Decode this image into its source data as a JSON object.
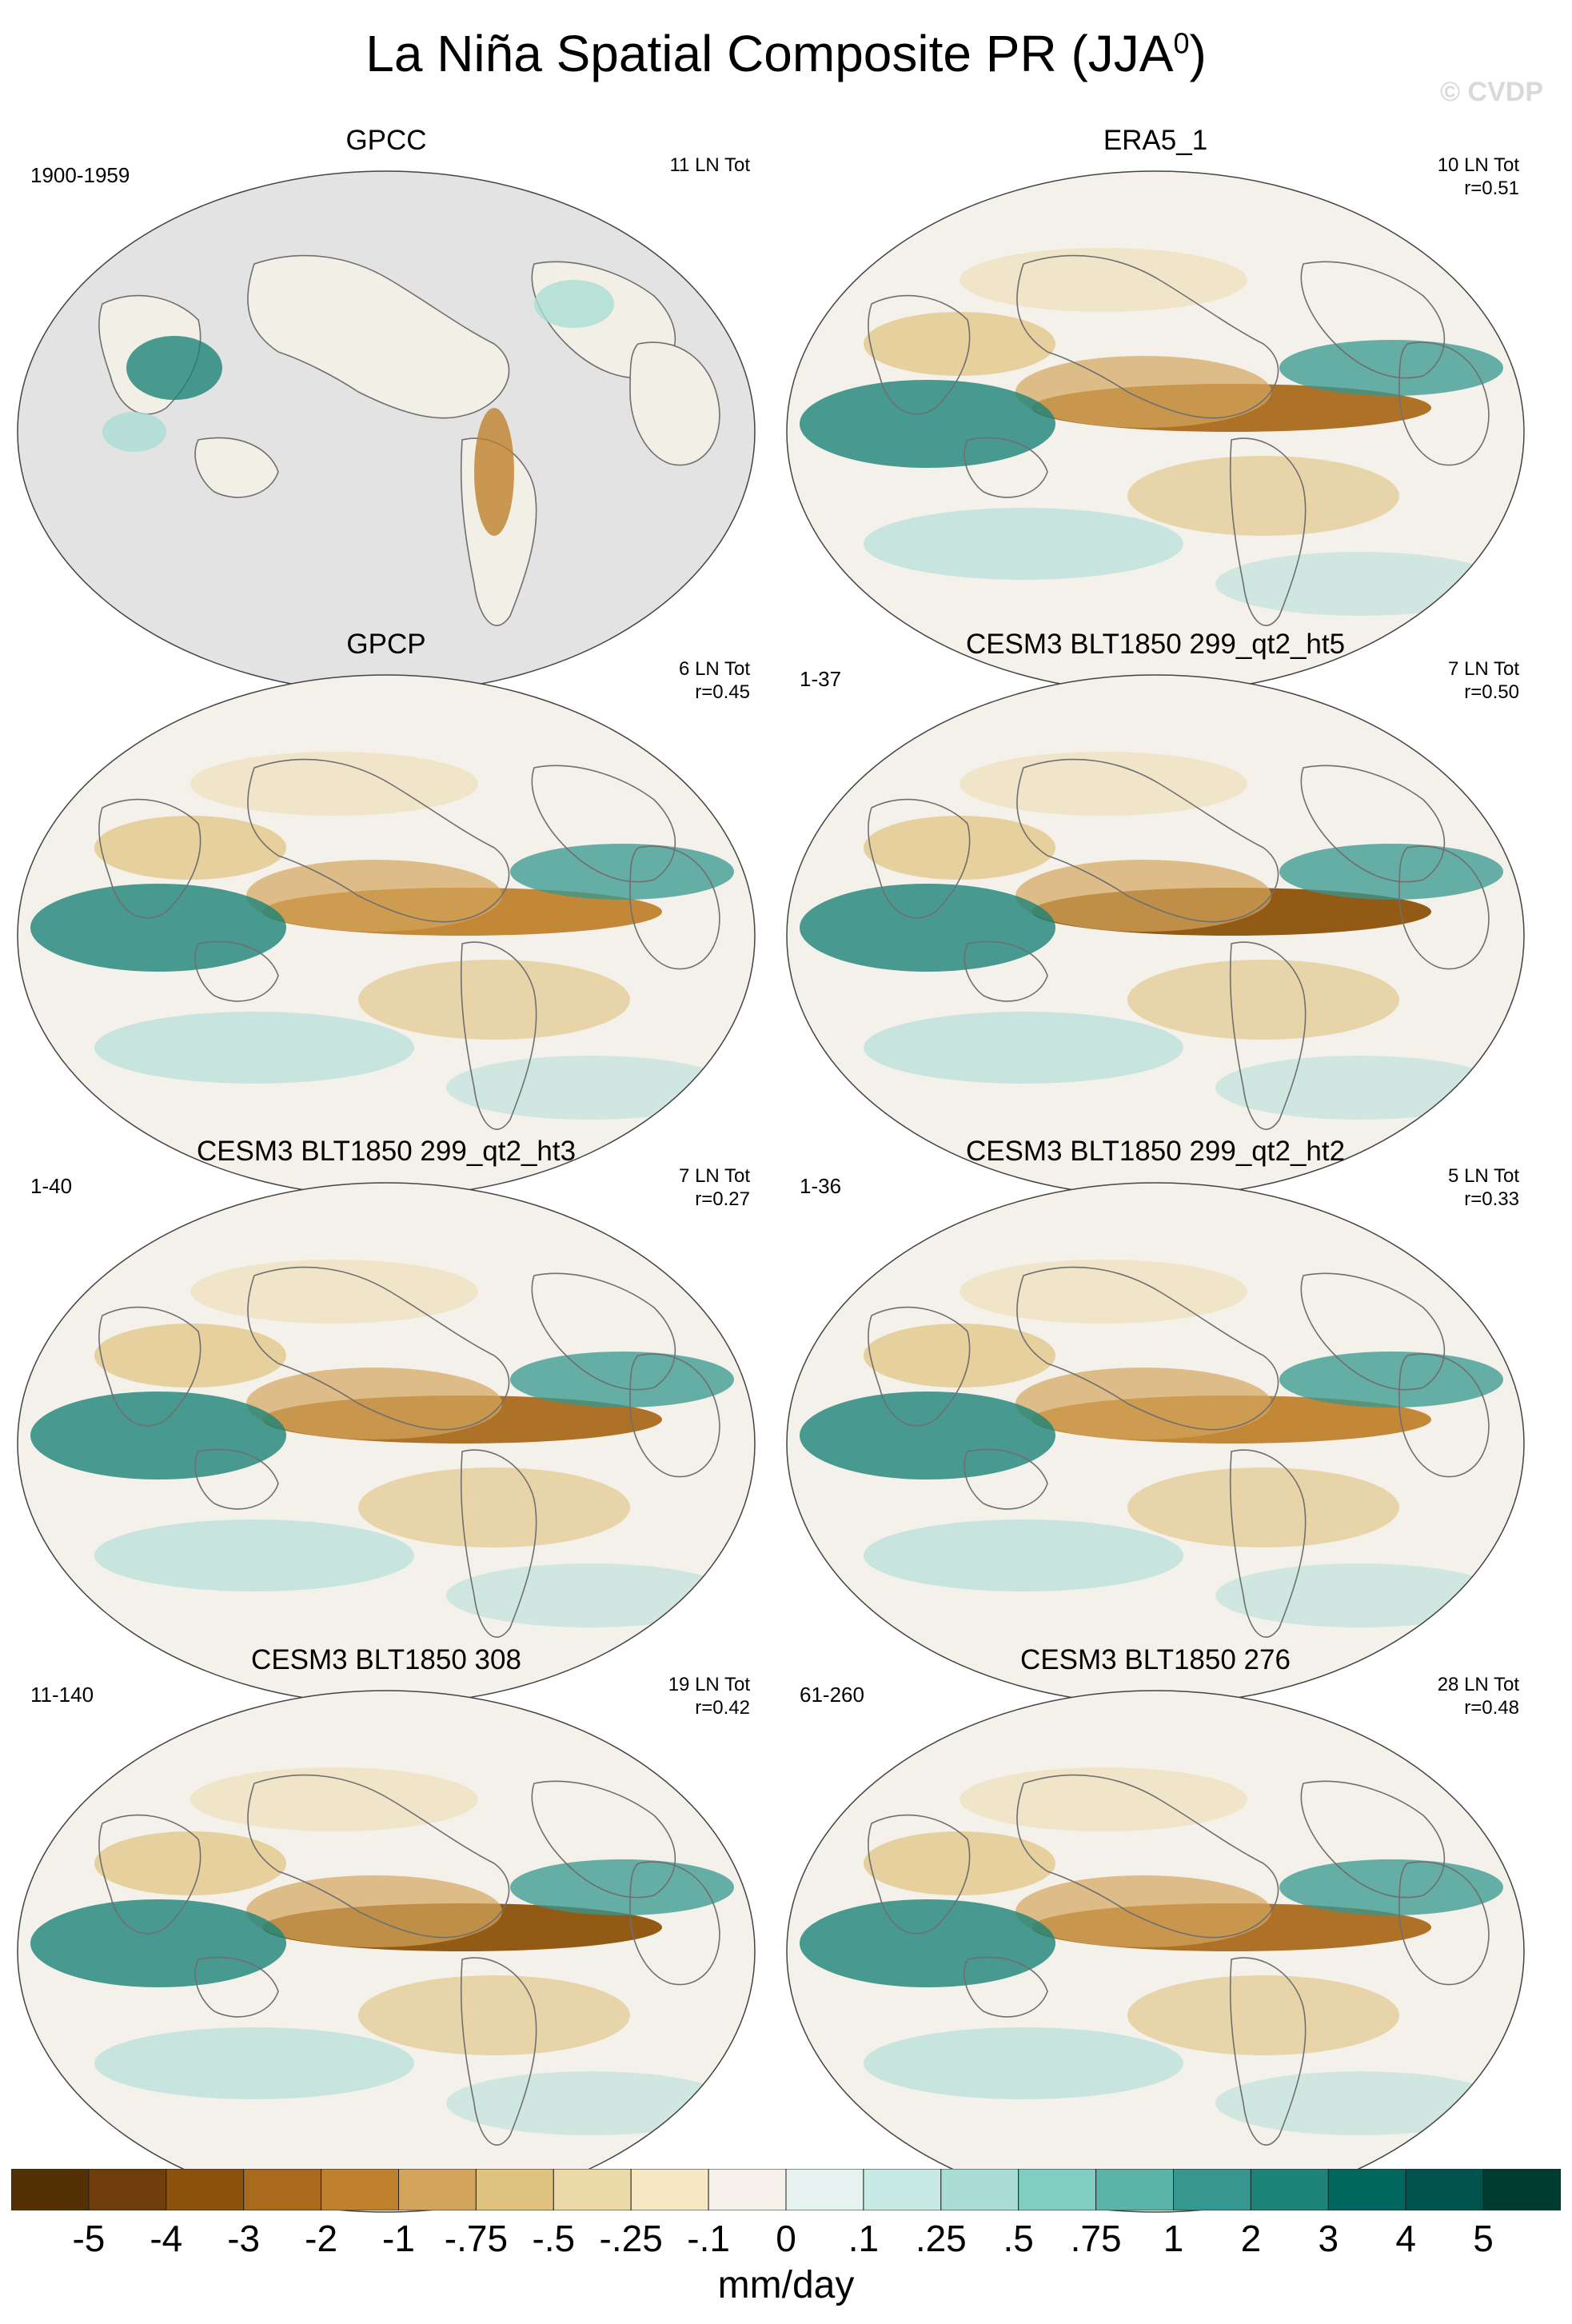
{
  "title": "La Niña Spatial Composite PR (JJA",
  "title_sup": "0",
  "title_end": ")",
  "watermark": "© CVDP",
  "panels": [
    {
      "title": "GPCC",
      "left": "1900-1959",
      "right1": "11 LN Tot",
      "right2": "",
      "land_only": true
    },
    {
      "title": "ERA5_1",
      "left": "",
      "right1": "10 LN Tot",
      "right2": "r=0.51",
      "land_only": false
    },
    {
      "title": "GPCP",
      "left": "",
      "right1": "6 LN Tot",
      "right2": "r=0.45",
      "land_only": false
    },
    {
      "title": "CESM3 BLT1850 299_qt2_ht5",
      "left": "1-37",
      "right1": "7 LN Tot",
      "right2": "r=0.50",
      "land_only": false
    },
    {
      "title": "CESM3 BLT1850 299_qt2_ht3",
      "left": "1-40",
      "right1": "7 LN Tot",
      "right2": "r=0.27",
      "land_only": false
    },
    {
      "title": "CESM3 BLT1850 299_qt2_ht2",
      "left": "1-36",
      "right1": "5 LN Tot",
      "right2": "r=0.33",
      "land_only": false
    },
    {
      "title": "CESM3 BLT1850 308",
      "left": "11-140",
      "right1": "19 LN Tot",
      "right2": "r=0.42",
      "land_only": false
    },
    {
      "title": "CESM3 BLT1850 276",
      "left": "61-260",
      "right1": "28 LN Tot",
      "right2": "r=0.48",
      "land_only": false
    }
  ],
  "colorbar": {
    "colors": [
      "#543005",
      "#6f3e0b",
      "#8c510a",
      "#a96a1d",
      "#bf812d",
      "#d3a55c",
      "#dfc27d",
      "#ecd9a8",
      "#f6e8c3",
      "#f5f1ea",
      "#e6f2ef",
      "#c7eae5",
      "#a9ddd5",
      "#80cdc1",
      "#5ab4a8",
      "#35978f",
      "#1d8378",
      "#01665e",
      "#01544d",
      "#003c30"
    ],
    "ticks": [
      "-5",
      "-4",
      "-3",
      "-2",
      "-1",
      "-.75",
      "-.5",
      "-.25",
      "-.1",
      "0",
      ".1",
      ".25",
      ".5",
      ".75",
      "1",
      "2",
      "3",
      "4",
      "5"
    ],
    "units": "mm/day"
  }
}
